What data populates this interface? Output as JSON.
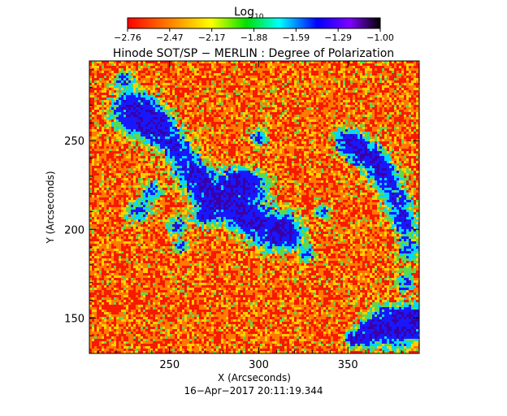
{
  "colorbar": {
    "title_main": "Log",
    "title_sub": "10",
    "tick_labels": [
      "−2.76",
      "−2.47",
      "−2.17",
      "−1.88",
      "−1.59",
      "−1.29",
      "−1.00"
    ],
    "colors": [
      "#ff0000",
      "#ff7f00",
      "#ffff00",
      "#00ff00",
      "#00ffff",
      "#0000ff",
      "#7f00ff",
      "#000000"
    ]
  },
  "chart_data": {
    "type": "heatmap",
    "title": "Hinode SOT/SP − MERLIN : Degree of Polarization",
    "xlabel": "X (Arcseconds)",
    "ylabel": "Y (Arcseconds)",
    "xlim": [
      205,
      390
    ],
    "ylim": [
      130,
      295
    ],
    "xticks": [
      250,
      300,
      350
    ],
    "yticks": [
      150,
      200,
      250
    ],
    "color_scale": "log10",
    "clim": [
      -2.76,
      -1.0
    ],
    "timestamp": "16−Apr−2017 20:11:19.344"
  }
}
